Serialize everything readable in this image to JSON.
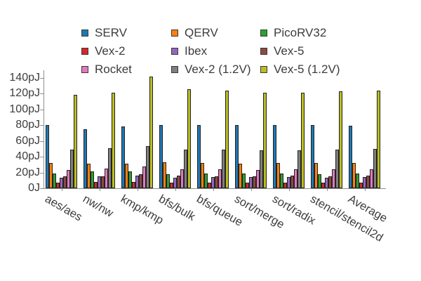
{
  "chart_data": {
    "type": "bar",
    "title": "",
    "xlabel": "",
    "ylabel": "",
    "unit": "pJ",
    "ylim": [
      0,
      140
    ],
    "grid": false,
    "legend_position": "top",
    "legend_columns": 3,
    "ytick_labels": [
      "0J",
      "20pJ",
      "40pJ",
      "60pJ",
      "80pJ",
      "100pJ",
      "120pJ",
      "140pJ"
    ],
    "ytick_values": [
      0,
      20,
      40,
      60,
      80,
      100,
      120,
      140
    ],
    "categories": [
      "aes/aes",
      "nw/nw",
      "kmp/kmp",
      "bfs/bulk",
      "bfs/queue",
      "sort/merge",
      "sort/radix",
      "stencil/stencil2d",
      "Average"
    ],
    "series": [
      {
        "name": "SERV",
        "color": "#1f77b4",
        "values": [
          80,
          75,
          78,
          80,
          80,
          80,
          80,
          80,
          79
        ]
      },
      {
        "name": "QERV",
        "color": "#ff7f0e",
        "values": [
          32,
          31,
          31,
          33,
          32,
          31,
          32,
          32,
          32
        ]
      },
      {
        "name": "PicoRV32",
        "color": "#2ca02c",
        "values": [
          19,
          21,
          21,
          18,
          19,
          19,
          19,
          18,
          19
        ]
      },
      {
        "name": "Vex-2",
        "color": "#d62728",
        "values": [
          7,
          8,
          8,
          7,
          7,
          7,
          7,
          7,
          7
        ]
      },
      {
        "name": "Ibex",
        "color": "#9467bd",
        "values": [
          13,
          15,
          16,
          13,
          14,
          14,
          14,
          13,
          14
        ]
      },
      {
        "name": "Vex-5",
        "color": "#8c4a42",
        "values": [
          15,
          15,
          18,
          16,
          15,
          15,
          16,
          15,
          16
        ]
      },
      {
        "name": "Rocket",
        "color": "#e377c2",
        "values": [
          23,
          25,
          28,
          24,
          24,
          23,
          24,
          24,
          24
        ]
      },
      {
        "name": "Vex-2 (1.2V)",
        "color": "#7f7f7f",
        "values": [
          49,
          51,
          53,
          49,
          49,
          48,
          48,
          49,
          50
        ]
      },
      {
        "name": "Vex-5 (1.2V)",
        "color": "#bcbd22",
        "values": [
          118,
          121,
          141,
          125,
          124,
          121,
          121,
          123,
          124
        ]
      }
    ]
  },
  "colors": {
    "background": "#ffffff",
    "axis": "#8f8f8f",
    "text": "#3d3d3d",
    "bar_edge": "#222222",
    "swatch_edge": "#3a3a3a"
  }
}
